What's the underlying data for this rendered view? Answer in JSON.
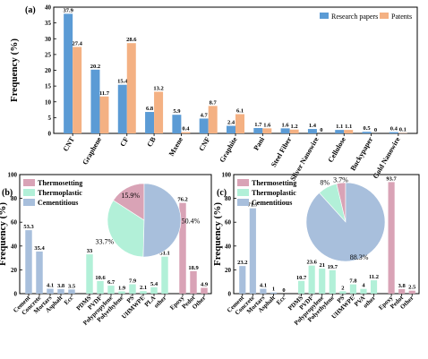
{
  "chart_data": [
    {
      "panel_label": "(a)",
      "type": "bar",
      "ylabel": "Frequency (%)",
      "ylim": [
        0,
        40
      ],
      "yticks": [
        0,
        5,
        10,
        15,
        20,
        25,
        30,
        35,
        40
      ],
      "categories": [
        "CNT",
        "Graphene",
        "CF",
        "CB",
        "Mxene",
        "CNF",
        "Graphite",
        "Pani",
        "Steel Fiber",
        "Sliver Nanowire",
        "Cellulose",
        "Buckypaper",
        "Gold Nanowire"
      ],
      "series": [
        {
          "name": "Research papers",
          "color": "#5b9bd5",
          "values": [
            37.9,
            20.2,
            15.4,
            6.8,
            5.9,
            4.7,
            2.4,
            1.7,
            1.6,
            1.4,
            1.1,
            0.5,
            0.4
          ],
          "labels": [
            "37.9",
            "20.2",
            "15.4",
            "6.8",
            "5.9",
            "4.7",
            "2.4",
            "1.7",
            "1.6",
            "1.4",
            "1.1",
            "0.5",
            "0.4"
          ]
        },
        {
          "name": "Patents",
          "color": "#f4b183",
          "values": [
            27.4,
            11.7,
            28.6,
            13.2,
            0.4,
            8.7,
            6.1,
            1.6,
            1.2,
            0,
            1.1,
            0,
            0.1
          ],
          "labels": [
            "27.4",
            "11.7",
            "28.6",
            "13.2",
            "0.4",
            "8.7",
            "6.1",
            "1.6",
            "1.2",
            "0",
            "1.1",
            "0",
            "0.1"
          ]
        }
      ],
      "legend_position": "top-right"
    },
    {
      "panel_label": "(b)",
      "type": "bar",
      "ylabel": "Frequency (%)",
      "ylim": [
        0,
        100
      ],
      "yticks": [
        0,
        20,
        40,
        60,
        80,
        100
      ],
      "groups": [
        {
          "name": "Cementitious",
          "color": "#a8bfdc",
          "categories": [
            "Cement",
            "Concrete",
            "Mortars",
            "Asphalt",
            "Ecc"
          ],
          "values": [
            53.3,
            35.4,
            4.1,
            3.8,
            3.5
          ],
          "labels": [
            "53.3",
            "35.4",
            "4.1",
            "3.8",
            "3.5"
          ]
        },
        {
          "name": "Thermoplastic",
          "color": "#b2f0d8",
          "categories": [
            "PDMS",
            "PVDF",
            "Polypropylene",
            "Polyethylene",
            "PS",
            "UHMWPE",
            "PLA",
            "other"
          ],
          "values": [
            33,
            10.6,
            6.7,
            1.9,
            7.9,
            2.1,
            5.4,
            31.1
          ],
          "labels": [
            "33",
            "10.6",
            "6.7",
            "1.9",
            "7.9",
            "2.1",
            "5.4",
            "31.1"
          ]
        },
        {
          "name": "Thermosetting",
          "color": "#d9a3b6",
          "categories": [
            "Epoxy",
            "Pedot",
            "Other"
          ],
          "values": [
            76.2,
            18.9,
            4.9
          ],
          "labels": [
            "76.2",
            "18.9",
            "4.9"
          ]
        }
      ],
      "pie": [
        {
          "name": "Thermosetting",
          "value": 15.9,
          "label": "15.9%",
          "color": "#d9a3b6"
        },
        {
          "name": "Thermoplastic",
          "value": 33.7,
          "label": "33.7%",
          "color": "#b2f0d8"
        },
        {
          "name": "Cementitious",
          "value": 50.4,
          "label": "50.4%",
          "color": "#a8bfdc"
        }
      ],
      "legend_position": "top-left"
    },
    {
      "panel_label": "(c)",
      "type": "bar",
      "ylabel": "Frequency (%)",
      "ylim": [
        0,
        100
      ],
      "yticks": [
        0,
        20,
        40,
        60,
        80,
        100
      ],
      "groups": [
        {
          "name": "Cementitious",
          "color": "#a8bfdc",
          "categories": [
            "Cement",
            "Concrete",
            "Mortars",
            "Asphalt",
            "Ecc"
          ],
          "values": [
            23.2,
            71.7,
            4.1,
            1,
            0
          ],
          "labels": [
            "23.2",
            "71.7",
            "4.1",
            "1",
            "0"
          ]
        },
        {
          "name": "Thermoplastic",
          "color": "#b2f0d8",
          "categories": [
            "PDMS",
            "PVDF",
            "Polypropylene",
            "Polyethylene",
            "PS",
            "UHMWPE",
            "PVA",
            "other"
          ],
          "values": [
            10.7,
            23.6,
            21,
            19.7,
            2,
            7.8,
            4,
            11.2
          ],
          "labels": [
            "10.7",
            "23.6",
            "21",
            "19.7",
            "2",
            "7.8",
            "4",
            "11.2"
          ]
        },
        {
          "name": "Thermosetting",
          "color": "#d9a3b6",
          "categories": [
            "Epoxy",
            "Pedot",
            "Other"
          ],
          "values": [
            93.7,
            3.8,
            2.5
          ],
          "labels": [
            "93.7",
            "3.8",
            "2.5"
          ]
        }
      ],
      "pie": [
        {
          "name": "Thermosetting",
          "value": 3.7,
          "label": "3.7%",
          "color": "#d9a3b6"
        },
        {
          "name": "Thermoplastic",
          "value": 8,
          "label": "8%",
          "color": "#b2f0d8"
        },
        {
          "name": "Cementitious",
          "value": 88.3,
          "label": "88.3%",
          "color": "#a8bfdc"
        }
      ],
      "legend_position": "top-left"
    }
  ]
}
